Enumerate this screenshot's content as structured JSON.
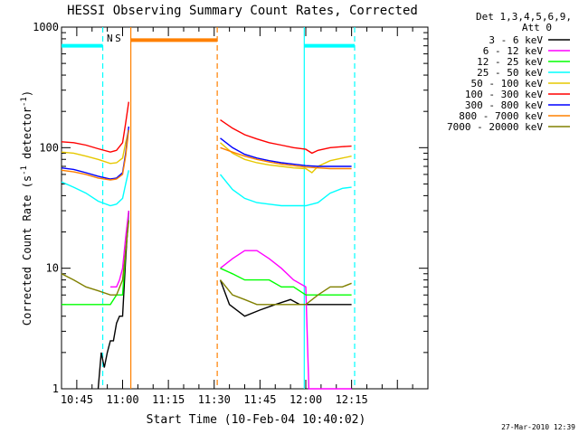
{
  "chart_data": {
    "type": "line",
    "title": "HESSI Observing Summary Count Rates, Corrected",
    "xlabel": "Start Time (10-Feb-04 10:40:02)",
    "ylabel": "Corrected Count Rate (s⁻¹ detector⁻¹)",
    "ylabel_parts": [
      "Corrected Count Rate (s",
      "-1",
      " detector",
      "-1",
      ")"
    ],
    "yscale": "log",
    "ylim": [
      1,
      1000
    ],
    "xlim_minutes": [
      40,
      160
    ],
    "y_ticks": [
      {
        "value": 1,
        "label": "1"
      },
      {
        "value": 10,
        "label": "10"
      },
      {
        "value": 100,
        "label": "100"
      },
      {
        "value": 1000,
        "label": "1000"
      }
    ],
    "x_ticks": [
      {
        "value": 45,
        "label": "10:45"
      },
      {
        "value": 60,
        "label": "11:00"
      },
      {
        "value": 75,
        "label": "11:15"
      },
      {
        "value": 90,
        "label": "11:30"
      },
      {
        "value": 105,
        "label": "11:45"
      },
      {
        "value": 120,
        "label": "12:00"
      },
      {
        "value": 135,
        "label": "12:15"
      }
    ],
    "legend": {
      "header": [
        "Det 1,3,4,5,6,9,",
        "Att 0"
      ],
      "position": "right"
    },
    "series": [
      {
        "name": "3 - 6 keV",
        "color": "#000000",
        "points": [
          [
            40,
            null
          ],
          [
            52,
            1
          ],
          [
            53,
            2
          ],
          [
            54,
            1.5
          ],
          [
            55,
            2
          ],
          [
            56,
            2.5
          ],
          [
            57,
            2.5
          ],
          [
            58,
            3.5
          ],
          [
            59,
            4
          ],
          [
            60,
            4
          ],
          [
            61,
            12
          ],
          [
            62,
            30
          ],
          [
            63,
            null
          ],
          [
            91,
            null
          ],
          [
            92,
            8
          ],
          [
            95,
            5
          ],
          [
            100,
            4
          ],
          [
            105,
            4.5
          ],
          [
            110,
            5
          ],
          [
            115,
            5.5
          ],
          [
            118,
            5
          ],
          [
            122,
            5
          ],
          [
            125,
            5
          ],
          [
            130,
            5
          ],
          [
            135,
            5
          ],
          [
            136,
            null
          ]
        ]
      },
      {
        "name": "6 - 12 keV",
        "color": "#ff00ff",
        "points": [
          [
            40,
            null
          ],
          [
            56,
            7
          ],
          [
            57,
            7
          ],
          [
            58,
            7
          ],
          [
            59,
            8
          ],
          [
            60,
            10
          ],
          [
            61,
            18
          ],
          [
            62,
            30
          ],
          [
            63,
            null
          ],
          [
            91,
            null
          ],
          [
            92,
            10
          ],
          [
            96,
            12
          ],
          [
            100,
            14
          ],
          [
            104,
            14
          ],
          [
            108,
            12
          ],
          [
            112,
            10
          ],
          [
            116,
            8
          ],
          [
            120,
            7
          ],
          [
            121,
            1
          ],
          [
            124,
            1
          ],
          [
            127,
            1
          ],
          [
            130,
            1
          ],
          [
            133,
            1
          ],
          [
            135,
            1
          ],
          [
            136,
            null
          ]
        ]
      },
      {
        "name": "12 - 25 keV",
        "color": "#00ff00",
        "points": [
          [
            40,
            5
          ],
          [
            45,
            5
          ],
          [
            50,
            5
          ],
          [
            53,
            5
          ],
          [
            56,
            5
          ],
          [
            58,
            6
          ],
          [
            60,
            6
          ],
          [
            61,
            14
          ],
          [
            62,
            25
          ],
          [
            63,
            null
          ],
          [
            91,
            null
          ],
          [
            92,
            10
          ],
          [
            96,
            9
          ],
          [
            100,
            8
          ],
          [
            104,
            8
          ],
          [
            108,
            8
          ],
          [
            112,
            7
          ],
          [
            116,
            7
          ],
          [
            120,
            6
          ],
          [
            124,
            6
          ],
          [
            128,
            6
          ],
          [
            132,
            6
          ],
          [
            135,
            6
          ],
          [
            136,
            null
          ]
        ]
      },
      {
        "name": "25 - 50 keV",
        "color": "#00ffff",
        "points": [
          [
            40,
            52
          ],
          [
            44,
            47
          ],
          [
            48,
            42
          ],
          [
            52,
            36
          ],
          [
            56,
            33
          ],
          [
            58,
            34
          ],
          [
            60,
            38
          ],
          [
            61,
            50
          ],
          [
            62,
            65
          ],
          [
            63,
            null
          ],
          [
            91,
            null
          ],
          [
            92,
            60
          ],
          [
            96,
            45
          ],
          [
            100,
            38
          ],
          [
            104,
            35
          ],
          [
            108,
            34
          ],
          [
            112,
            33
          ],
          [
            116,
            33
          ],
          [
            120,
            33
          ],
          [
            124,
            35
          ],
          [
            128,
            42
          ],
          [
            132,
            46
          ],
          [
            135,
            47
          ],
          [
            136,
            null
          ]
        ]
      },
      {
        "name": "50 - 100 keV",
        "color": "#e6c800",
        "points": [
          [
            40,
            92
          ],
          [
            44,
            90
          ],
          [
            48,
            85
          ],
          [
            52,
            80
          ],
          [
            56,
            74
          ],
          [
            58,
            75
          ],
          [
            60,
            82
          ],
          [
            61,
            110
          ],
          [
            62,
            140
          ],
          [
            63,
            null
          ],
          [
            91,
            null
          ],
          [
            92,
            110
          ],
          [
            96,
            90
          ],
          [
            100,
            80
          ],
          [
            104,
            75
          ],
          [
            108,
            72
          ],
          [
            112,
            70
          ],
          [
            116,
            68
          ],
          [
            120,
            67
          ],
          [
            122,
            62
          ],
          [
            124,
            70
          ],
          [
            128,
            78
          ],
          [
            132,
            82
          ],
          [
            135,
            85
          ],
          [
            136,
            null
          ]
        ]
      },
      {
        "name": "100 - 300 keV",
        "color": "#ff0000",
        "points": [
          [
            40,
            112
          ],
          [
            44,
            110
          ],
          [
            48,
            105
          ],
          [
            52,
            98
          ],
          [
            56,
            92
          ],
          [
            58,
            95
          ],
          [
            60,
            110
          ],
          [
            61,
            160
          ],
          [
            62,
            240
          ],
          [
            63,
            null
          ],
          [
            91,
            null
          ],
          [
            92,
            170
          ],
          [
            96,
            145
          ],
          [
            100,
            128
          ],
          [
            104,
            118
          ],
          [
            108,
            110
          ],
          [
            112,
            105
          ],
          [
            116,
            100
          ],
          [
            120,
            97
          ],
          [
            122,
            90
          ],
          [
            124,
            95
          ],
          [
            128,
            100
          ],
          [
            132,
            102
          ],
          [
            135,
            103
          ],
          [
            136,
            null
          ]
        ]
      },
      {
        "name": "300 - 800 keV",
        "color": "#0000ff",
        "points": [
          [
            40,
            68
          ],
          [
            44,
            66
          ],
          [
            48,
            62
          ],
          [
            52,
            58
          ],
          [
            56,
            55
          ],
          [
            58,
            56
          ],
          [
            60,
            62
          ],
          [
            61,
            90
          ],
          [
            62,
            150
          ],
          [
            63,
            null
          ],
          [
            91,
            null
          ],
          [
            92,
            120
          ],
          [
            96,
            100
          ],
          [
            100,
            88
          ],
          [
            104,
            82
          ],
          [
            108,
            78
          ],
          [
            112,
            75
          ],
          [
            116,
            73
          ],
          [
            120,
            71
          ],
          [
            124,
            70
          ],
          [
            128,
            70
          ],
          [
            132,
            70
          ],
          [
            135,
            70
          ],
          [
            136,
            null
          ]
        ]
      },
      {
        "name": "800 - 7000 keV",
        "color": "#ff8000",
        "points": [
          [
            40,
            65
          ],
          [
            44,
            63
          ],
          [
            48,
            60
          ],
          [
            52,
            56
          ],
          [
            56,
            54
          ],
          [
            58,
            55
          ],
          [
            60,
            60
          ],
          [
            61,
            85
          ],
          [
            62,
            140
          ],
          [
            63,
            null
          ],
          [
            91,
            null
          ],
          [
            92,
            100
          ],
          [
            96,
            92
          ],
          [
            100,
            85
          ],
          [
            104,
            80
          ],
          [
            108,
            76
          ],
          [
            112,
            73
          ],
          [
            116,
            71
          ],
          [
            120,
            69
          ],
          [
            124,
            68
          ],
          [
            128,
            67
          ],
          [
            132,
            67
          ],
          [
            135,
            67
          ],
          [
            136,
            null
          ]
        ]
      },
      {
        "name": "7000 - 20000 keV",
        "color": "#808000",
        "points": [
          [
            40,
            9
          ],
          [
            44,
            8
          ],
          [
            48,
            7
          ],
          [
            52,
            6.5
          ],
          [
            56,
            6
          ],
          [
            58,
            6
          ],
          [
            60,
            8
          ],
          [
            61,
            14
          ],
          [
            62,
            25
          ],
          [
            63,
            null
          ],
          [
            91,
            null
          ],
          [
            92,
            8
          ],
          [
            96,
            6
          ],
          [
            100,
            5.5
          ],
          [
            104,
            5
          ],
          [
            108,
            5
          ],
          [
            112,
            5
          ],
          [
            116,
            5
          ],
          [
            120,
            5
          ],
          [
            124,
            6
          ],
          [
            128,
            7
          ],
          [
            132,
            7
          ],
          [
            135,
            7.5
          ],
          [
            136,
            null
          ]
        ]
      }
    ],
    "annotations": [
      {
        "text": "N",
        "x": 55.8,
        "color": "#00ffff"
      },
      {
        "text": "S",
        "x": 58.5,
        "color": "#ff8000"
      }
    ],
    "vertical_lines": [
      {
        "x": 53.5,
        "color": "#00ffff",
        "style": "dashed"
      },
      {
        "x": 62.7,
        "color": "#ff8000",
        "style": "solid"
      },
      {
        "x": 91.0,
        "color": "#ff8000",
        "style": "dashed"
      },
      {
        "x": 119.5,
        "color": "#00ffff",
        "style": "solid"
      },
      {
        "x": 136.0,
        "color": "#00ffff",
        "style": "dashed"
      }
    ],
    "horizontal_bars": [
      {
        "x": [
          40,
          53.5
        ],
        "y": 700,
        "color": "#00ffff"
      },
      {
        "x": [
          62.7,
          91.0
        ],
        "y": 780,
        "color": "#ff8000"
      },
      {
        "x": [
          119.5,
          136.0
        ],
        "y": 700,
        "color": "#00ffff"
      }
    ],
    "footer_date": "27-Mar-2010 12:39"
  }
}
